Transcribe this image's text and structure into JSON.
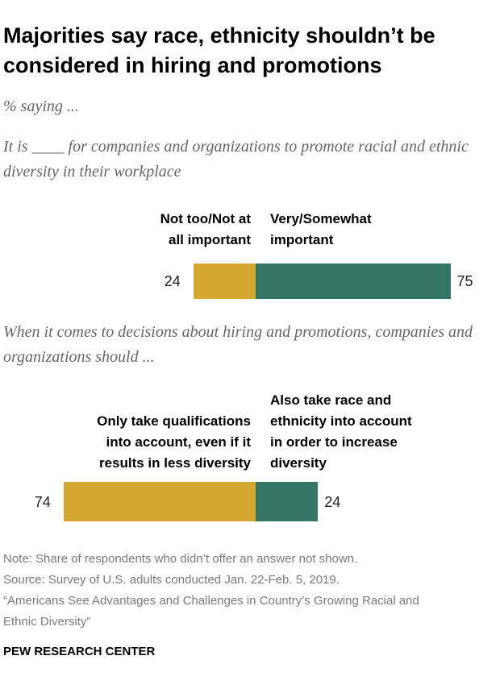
{
  "title": "Majorities say race, ethnicity shouldn’t be considered in hiring and promotions",
  "subtitle": "% saying ...",
  "chart_data": [
    {
      "type": "bar",
      "question": "It is ____ for companies and organizations to promote racial and ethnic diversity in their workplace",
      "series": [
        {
          "name": "Not too/Not at\nall important",
          "color": "#d4a82f",
          "values": [
            24
          ]
        },
        {
          "name": "Very/Somewhat\nimportant",
          "color": "#347565",
          "values": [
            75
          ]
        }
      ]
    },
    {
      "type": "bar",
      "question": "When it comes to decisions about hiring and promotions, companies and organizations should ...",
      "series": [
        {
          "name": "Only take qualifications\ninto account, even if it\nresults in less diversity",
          "color": "#d4a82f",
          "values": [
            74
          ]
        },
        {
          "name": "Also take race and\nethnicity into account\nin order to increase\ndiversity",
          "color": "#347565",
          "values": [
            24
          ]
        }
      ]
    }
  ],
  "note": "Note: Share of respondents who didn’t offer an answer not shown.",
  "source": "Source: Survey of U.S. adults conducted Jan. 22-Feb. 5, 2019.",
  "report": "“Americans See Advantages and Challenges in Country’s Growing Racial and Ethnic Diversity”",
  "credit": "PEW RESEARCH CENTER"
}
